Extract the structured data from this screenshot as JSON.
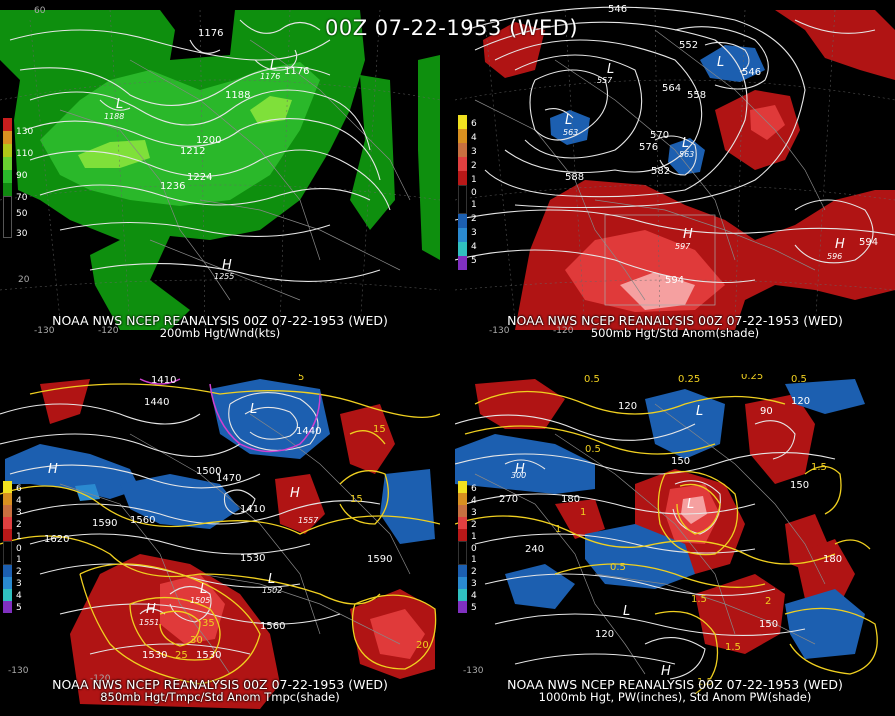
{
  "title": "00Z 07-22-1953 (WED)",
  "colors": {
    "green_dark": "#0e8f0e",
    "green_mid": "#2ab82a",
    "green_light": "#7fe03a",
    "red_dark": "#b01414",
    "red_mid": "#e03a3a",
    "red_light": "#f5a0a0",
    "blue_dark": "#1c5fb0",
    "contour": "#e6e6e6",
    "yellow": "#f0d020",
    "magenta": "#d040d0"
  },
  "panels": [
    {
      "id": "p200",
      "caption_top": "NOAA NWS NCEP REANALYSIS 00Z 07-22-1953 (WED)",
      "caption_bottom": "200mb Hgt/Wnd(kts)",
      "legend": [
        "130",
        "110",
        "90",
        "70",
        "50",
        "30"
      ],
      "legend_colors": [
        "#c81e1e",
        "#d89020",
        "#b0c818",
        "#6ad030",
        "#2ab82a",
        "#108a10"
      ],
      "labels": [
        "1176",
        "1176",
        "1176",
        "1188",
        "1188",
        "1200",
        "1212",
        "1224",
        "1236",
        "L",
        "L",
        "H",
        "1255",
        "60",
        "20",
        "-130",
        "-120"
      ]
    },
    {
      "id": "p500",
      "caption_top": "NOAA NWS NCEP REANALYSIS 00Z 07-22-1953 (WED)",
      "caption_bottom": "500mb Hgt/Std Anom(shade)",
      "legend": [
        "6",
        "4",
        "3",
        "2",
        "1",
        "0",
        "1",
        "2",
        "3",
        "4",
        "5"
      ],
      "legend_colors": [
        "#f0e020",
        "#d89020",
        "#c87040",
        "#e04040",
        "#b81818",
        "#000000",
        "#000000",
        "#1c5fb0",
        "#2a8ad0",
        "#30c0c0",
        "#8030c0"
      ],
      "labels": [
        "546",
        "552",
        "546",
        "564",
        "558",
        "570",
        "576",
        "582",
        "588",
        "594",
        "594",
        "L",
        "L",
        "L",
        "L",
        "H",
        "H",
        "557",
        "563",
        "563",
        "597",
        "596",
        "-130",
        "-120"
      ]
    },
    {
      "id": "p850",
      "caption_top": "NOAA NWS NCEP REANALYSIS 00Z 07-22-1953 (WED)",
      "caption_bottom": "850mb Hgt/Tmpc/Std Anom Tmpc(shade)",
      "legend": [
        "6",
        "4",
        "3",
        "2",
        "1",
        "0",
        "1",
        "2",
        "3",
        "4",
        "5"
      ],
      "legend_colors": [
        "#f0e020",
        "#d89020",
        "#c87040",
        "#e04040",
        "#b81818",
        "#000000",
        "#000000",
        "#1c5fb0",
        "#2a8ad0",
        "#30c0c0",
        "#8030c0"
      ],
      "labels": [
        "1410",
        "1440",
        "1500",
        "1470",
        "1560",
        "1590",
        "1620",
        "1530",
        "1530",
        "1530",
        "1560",
        "1590",
        "1440",
        "1410",
        "5",
        "15",
        "15",
        "25",
        "30",
        "35",
        "20",
        "H",
        "H",
        "H",
        "L",
        "L",
        "L",
        "1557",
        "1505",
        "1551",
        "1502",
        "-130",
        "-120"
      ]
    },
    {
      "id": "p1000",
      "caption_top": "NOAA NWS NCEP REANALYSIS 00Z 07-22-1953 (WED)",
      "caption_bottom": "1000mb Hgt, PW(inches), Std Anom PW(shade)",
      "legend": [
        "6",
        "4",
        "3",
        "2",
        "1",
        "0",
        "1",
        "2",
        "3",
        "4",
        "5"
      ],
      "legend_colors": [
        "#f0e020",
        "#d89020",
        "#c87040",
        "#e04040",
        "#b81818",
        "#000000",
        "#000000",
        "#1c5fb0",
        "#2a8ad0",
        "#30c0c0",
        "#8030c0"
      ],
      "labels": [
        "0.5",
        "0.25",
        "0.5",
        "0.25",
        "120",
        "90",
        "150",
        "180",
        "270",
        "240",
        "120",
        "150",
        "120",
        "1.5",
        "1.5",
        "1.5",
        "0.5",
        "0.5",
        "1",
        "1",
        "1.5",
        "2",
        "180",
        "150",
        "H",
        "H",
        "L",
        "L",
        "L",
        "300",
        "-130"
      ]
    }
  ]
}
